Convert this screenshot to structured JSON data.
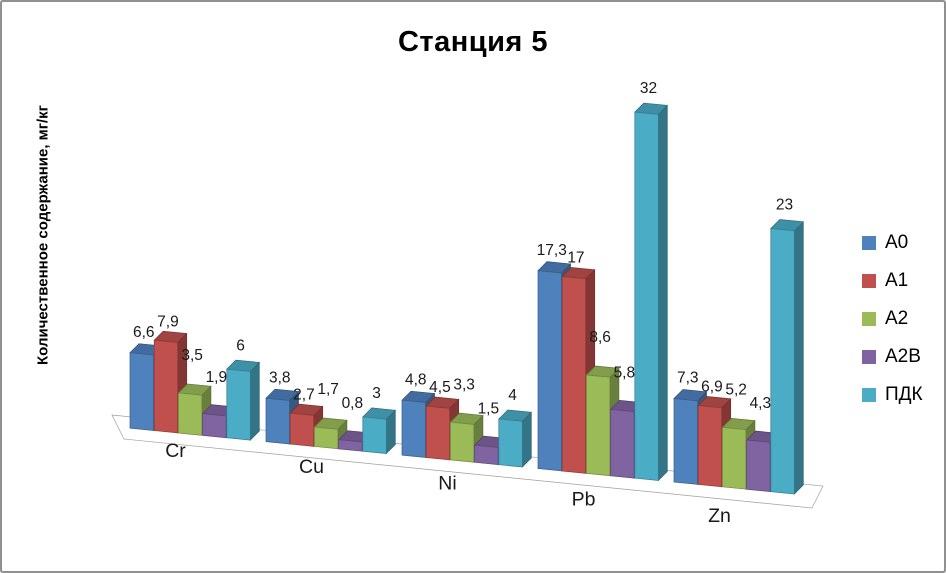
{
  "window": {
    "background": "#ffffff",
    "border_color": "#909090"
  },
  "chart_data": {
    "type": "bar",
    "style": "3d-clustered-column",
    "title": "Станция 5",
    "ylabel": "Количественное содержание, мг/кг",
    "xlabel": "",
    "categories": [
      "Cr",
      "Cu",
      "Ni",
      "Pb",
      "Zn"
    ],
    "series": [
      {
        "name": "A0",
        "color": "#4F81BD",
        "values": [
          6.6,
          3.8,
          4.8,
          17.3,
          7.3
        ]
      },
      {
        "name": "A1",
        "color": "#C0504D",
        "values": [
          7.9,
          2.7,
          4.5,
          17,
          6.9
        ]
      },
      {
        "name": "A2",
        "color": "#9BBB59",
        "values": [
          3.5,
          1.7,
          3.3,
          8.6,
          5.2
        ]
      },
      {
        "name": "A2B",
        "color": "#8064A2",
        "values": [
          1.9,
          0.8,
          1.5,
          5.8,
          4.3
        ]
      },
      {
        "name": "ПДК",
        "color": "#4BACC6",
        "values": [
          6,
          3,
          4,
          32,
          23
        ]
      }
    ],
    "data_labels_visible": true,
    "decimal_separator": ",",
    "legend_position": "right",
    "grid": false,
    "axis_lines": false,
    "floor_stroke_color": "#a0a0a0"
  }
}
